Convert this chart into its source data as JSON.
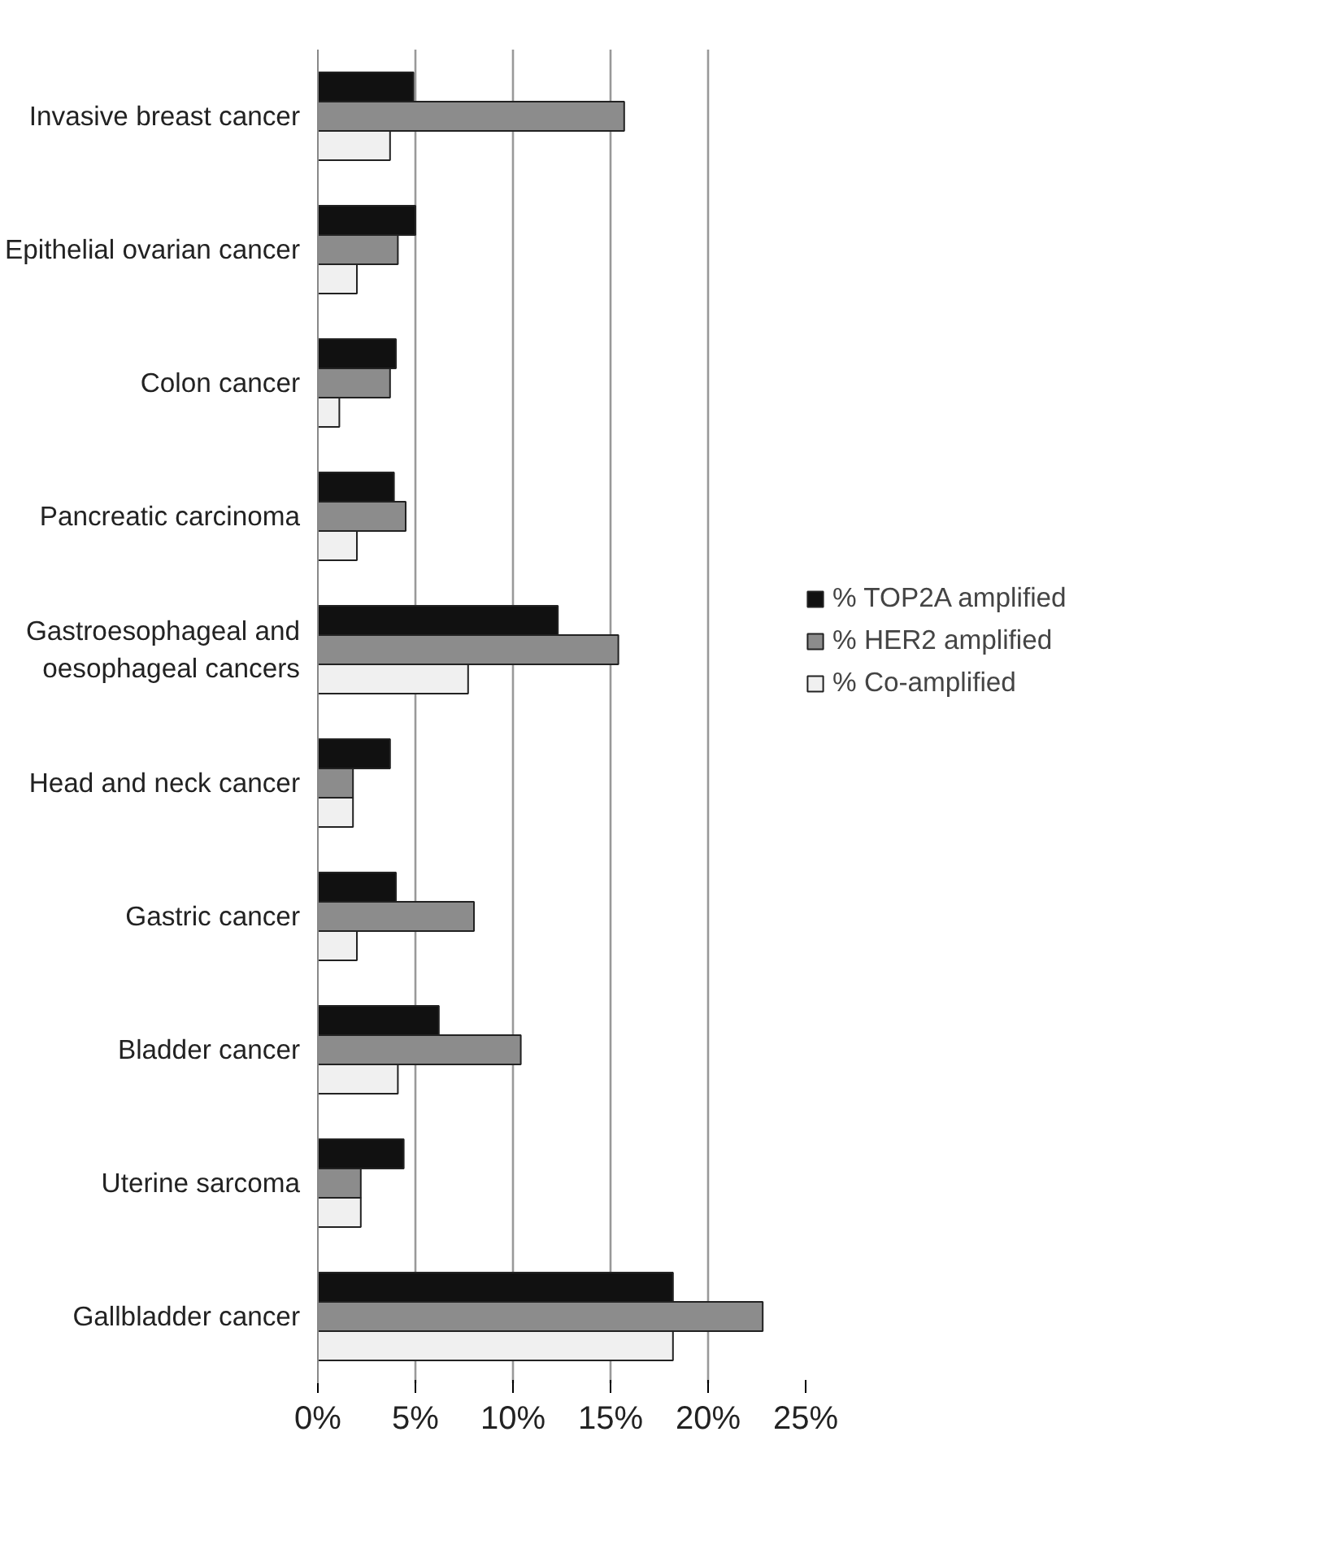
{
  "chart_data": {
    "type": "bar",
    "orientation": "horizontal",
    "categories": [
      "Invasive breast cancer",
      "Epithelial ovarian cancer",
      "Colon cancer",
      "Pancreatic carcinoma",
      "Gastroesophageal and oesophageal cancers",
      "Head and neck cancer",
      "Gastric cancer",
      "Bladder cancer",
      "Uterine sarcoma",
      "Gallbladder cancer"
    ],
    "series": [
      {
        "name": "% TOP2A amplified",
        "color": "#111111",
        "values": [
          4.9,
          5.0,
          4.0,
          3.9,
          12.3,
          3.7,
          4.0,
          6.2,
          4.4,
          18.2
        ]
      },
      {
        "name": "% HER2 amplified",
        "color": "#8c8c8c",
        "values": [
          15.7,
          4.1,
          3.7,
          4.5,
          15.4,
          1.8,
          8.0,
          10.4,
          2.2,
          22.8
        ]
      },
      {
        "name": "% Co-amplified",
        "color": "#f0f0f0",
        "values": [
          3.7,
          2.0,
          1.1,
          2.0,
          7.7,
          1.8,
          2.0,
          4.1,
          2.2,
          18.2
        ]
      }
    ],
    "xlim": [
      0,
      25
    ],
    "xticks": [
      {
        "value": 0,
        "label": "0%"
      },
      {
        "value": 5,
        "label": "5%"
      },
      {
        "value": 10,
        "label": "10%"
      },
      {
        "value": 15,
        "label": "15%"
      },
      {
        "value": 20,
        "label": "20%"
      },
      {
        "value": 25,
        "label": "25%"
      }
    ],
    "grid": "x",
    "legend": "right"
  }
}
